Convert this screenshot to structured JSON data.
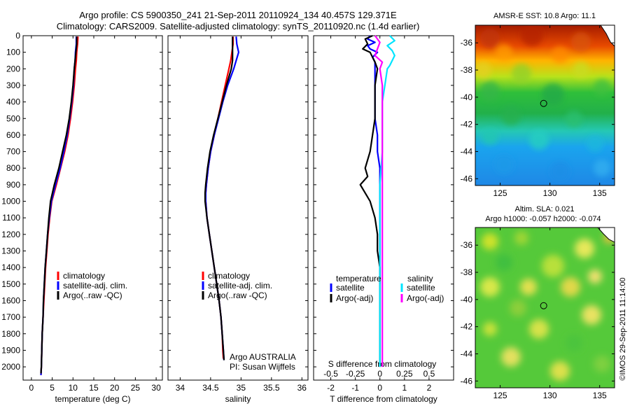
{
  "titles": {
    "line1": "Argo profile: CS 5900350_241 21-Sep-2011 20110924_134 40.457S 129.371E",
    "line2": "Climatology: CARS2009. Satellite-adjusted climatology: synTS_20110920.nc (1.4d earlier)"
  },
  "colors": {
    "climatology": "#ff0000",
    "satellite": "#0000ff",
    "argo": "#000000",
    "salinity_satellite": "#00e5ff",
    "salinity_argo": "#ff00ff"
  },
  "depth_axis": {
    "ticks": [
      "0",
      "100",
      "200",
      "300",
      "400",
      "500",
      "600",
      "700",
      "800",
      "900",
      "1000",
      "1100",
      "1200",
      "1300",
      "1400",
      "1500",
      "1600",
      "1700",
      "1800",
      "1900",
      "2000"
    ]
  },
  "chart_data": [
    {
      "type": "line",
      "name": "temperature-panel",
      "xlabel": "temperature (deg C)",
      "xlim": [
        -2,
        31.5
      ],
      "ylim": [
        0,
        2080
      ],
      "xticks": [
        "0",
        "5",
        "10",
        "15",
        "20",
        "25",
        "30"
      ],
      "xtick_values": [
        0,
        5,
        10,
        15,
        20,
        25,
        30
      ],
      "legend": [
        "climatology",
        "satellite-adj. clim.",
        "Argo(..raw -QC)"
      ],
      "series": [
        {
          "name": "climatology",
          "depth": [
            5,
            50,
            100,
            150,
            200,
            300,
            400,
            500,
            600,
            700,
            800,
            900,
            1000,
            1100,
            1200,
            1300,
            1400,
            1500,
            1600,
            1700,
            1800,
            1900,
            2000,
            2050
          ],
          "values": [
            11.2,
            11.1,
            10.9,
            10.8,
            10.6,
            10.3,
            9.9,
            9.4,
            8.8,
            8.0,
            7.0,
            6.0,
            4.9,
            4.4,
            4.0,
            3.7,
            3.4,
            3.2,
            3.0,
            2.8,
            2.6,
            2.5,
            2.4,
            2.3
          ]
        },
        {
          "name": "satellite-adj. clim.",
          "depth": [
            5,
            50,
            100,
            150,
            200,
            300,
            400,
            500,
            600,
            700,
            800,
            900,
            1000,
            1100,
            1200,
            1300,
            1400,
            1500,
            1600,
            1700,
            1800,
            1900,
            2000,
            2050
          ],
          "values": [
            10.8,
            10.8,
            10.6,
            10.5,
            10.3,
            10.1,
            9.7,
            9.2,
            8.6,
            7.8,
            6.9,
            5.8,
            4.8,
            4.3,
            3.9,
            3.6,
            3.3,
            3.1,
            2.9,
            2.8,
            2.6,
            2.5,
            2.4,
            2.3
          ]
        },
        {
          "name": "Argo(..raw -QC)",
          "depth": [
            5,
            50,
            100,
            150,
            200,
            300,
            400,
            500,
            600,
            700,
            800,
            900,
            1000,
            1100,
            1200,
            1300,
            1400,
            1500,
            1600,
            1700,
            1800,
            1900,
            2000,
            2040
          ],
          "values": [
            10.9,
            10.9,
            10.7,
            10.5,
            10.3,
            10.0,
            9.6,
            9.1,
            8.4,
            7.5,
            6.6,
            5.5,
            4.6,
            4.2,
            3.9,
            3.6,
            3.3,
            3.1,
            2.9,
            2.8,
            2.6,
            2.5,
            2.4,
            2.3
          ]
        }
      ]
    },
    {
      "type": "line",
      "name": "salinity-panel",
      "xlabel": "salinity",
      "xlim": [
        33.8,
        36.1
      ],
      "ylim": [
        0,
        2080
      ],
      "xticks": [
        "34",
        "34.5",
        "35",
        "35.5",
        "36"
      ],
      "xtick_values": [
        34,
        34.5,
        35,
        35.5,
        36
      ],
      "legend": [
        "climatology",
        "satellite-adj. clim.",
        "Argo(..raw -QC)"
      ],
      "annotation": [
        "Argo AUSTRALIA",
        "PI: Susan Wijffels"
      ],
      "series": [
        {
          "name": "climatology",
          "depth": [
            5,
            50,
            100,
            150,
            200,
            300,
            400,
            500,
            600,
            700,
            800,
            900,
            950,
            1000,
            1100,
            1200,
            1300,
            1400,
            1500,
            1600,
            1700,
            1800,
            1900,
            1950
          ],
          "values": [
            34.87,
            34.87,
            34.85,
            34.83,
            34.8,
            34.74,
            34.68,
            34.62,
            34.56,
            34.5,
            34.46,
            34.43,
            34.42,
            34.42,
            34.44,
            34.48,
            34.52,
            34.56,
            34.6,
            34.64,
            34.67,
            34.69,
            34.7,
            34.71
          ]
        },
        {
          "name": "satellite-adj. clim.",
          "depth": [
            5,
            50,
            100,
            150,
            200,
            300,
            400,
            500,
            600,
            700,
            800,
            900,
            950,
            1000,
            1100,
            1200,
            1300,
            1400,
            1500,
            1600,
            1700,
            1800,
            1900,
            1960
          ],
          "values": [
            34.92,
            34.93,
            34.96,
            34.92,
            34.88,
            34.78,
            34.7,
            34.63,
            34.56,
            34.5,
            34.46,
            34.43,
            34.42,
            34.42,
            34.44,
            34.48,
            34.52,
            34.56,
            34.6,
            34.64,
            34.67,
            34.69,
            34.71,
            34.72
          ]
        },
        {
          "name": "Argo(..raw -QC)",
          "depth": [
            5,
            50,
            100,
            150,
            200,
            300,
            400,
            500,
            600,
            700,
            800,
            900,
            950,
            1000,
            1100,
            1200,
            1300,
            1400,
            1500,
            1600,
            1700,
            1800,
            1900,
            1960
          ],
          "values": [
            34.86,
            34.86,
            34.86,
            34.86,
            34.84,
            34.76,
            34.69,
            34.62,
            34.55,
            34.49,
            34.45,
            34.42,
            34.41,
            34.41,
            34.44,
            34.48,
            34.52,
            34.56,
            34.6,
            34.64,
            34.67,
            34.69,
            34.71,
            34.72
          ]
        }
      ]
    },
    {
      "type": "line",
      "name": "difference-panel",
      "xlabel": "T difference from climatology",
      "xlabel_top": "S difference from climatology",
      "xlim": [
        -2.7,
        3.0
      ],
      "ylim": [
        0,
        2080
      ],
      "xticks": [
        "-2",
        "-1",
        "0",
        "1",
        "2"
      ],
      "xtick_values": [
        -2,
        -1,
        0,
        1,
        2
      ],
      "xticks_top": [
        "-0.5",
        "-0.25",
        "0",
        "0.25",
        "0.5"
      ],
      "xticks_top_positions": [
        -2,
        -1,
        0,
        1,
        2
      ],
      "legend_temperature": {
        "title": "temperature",
        "items": [
          "satellite",
          "Argo(-adj)"
        ]
      },
      "legend_salinity": {
        "title": "salinity",
        "items": [
          "satellite",
          "Argo(-adj)"
        ]
      },
      "series": [
        {
          "name": "temperature satellite",
          "depth": [
            0,
            20,
            40,
            60,
            80,
            100,
            130,
            160,
            200,
            300,
            400,
            500,
            600,
            700,
            800,
            900,
            1000,
            1100,
            1200,
            1300,
            1400,
            1500
          ],
          "values": [
            -0.4,
            -0.5,
            -0.2,
            -0.5,
            -0.4,
            -0.1,
            -0.3,
            -0.2,
            -0.2,
            -0.2,
            -0.2,
            -0.2,
            -0.1,
            -0.1,
            0.0,
            0.0,
            0.0,
            0.0,
            0.0,
            0.0,
            0.0,
            0.0
          ]
        },
        {
          "name": "temperature Argo(-adj)",
          "depth": [
            0,
            20,
            50,
            80,
            100,
            130,
            160,
            200,
            300,
            400,
            500,
            600,
            700,
            800,
            850,
            900,
            950,
            1000,
            1100,
            1200,
            1300,
            1400,
            1500,
            1600,
            1700,
            1800,
            1900,
            2000
          ],
          "values": [
            -0.3,
            -0.6,
            -0.5,
            -0.7,
            -0.4,
            -0.3,
            -0.2,
            -0.1,
            -0.2,
            -0.2,
            -0.2,
            -0.3,
            -0.4,
            -0.6,
            -0.5,
            -0.8,
            -0.6,
            -0.4,
            -0.2,
            -0.1,
            -0.1,
            0.0,
            0.0,
            0.0,
            0.0,
            0.0,
            0.0,
            0.0
          ]
        },
        {
          "name": "salinity satellite",
          "depth": [
            0,
            30,
            60,
            90,
            120,
            150,
            180,
            200,
            300,
            400,
            500,
            700,
            900,
            1100,
            1300,
            1500,
            1700,
            1900,
            2000
          ],
          "values": [
            0.4,
            0.6,
            0.3,
            0.5,
            0.6,
            0.5,
            0.4,
            0.3,
            0.2,
            0.1,
            0.1,
            0.1,
            0.0,
            0.0,
            0.0,
            0.0,
            0.0,
            0.0,
            0.0
          ]
        },
        {
          "name": "salinity Argo(-adj)",
          "depth": [
            0,
            40,
            80,
            120,
            160,
            200,
            300,
            400,
            500,
            700,
            900,
            1100,
            1300,
            1500,
            1700,
            1900,
            2000
          ],
          "values": [
            -0.2,
            0.0,
            -0.1,
            -0.2,
            0.1,
            0.0,
            0.1,
            0.1,
            0.1,
            0.1,
            0.1,
            0.1,
            0.1,
            0.1,
            0.1,
            0.1,
            0.1
          ]
        }
      ]
    },
    {
      "type": "heatmap",
      "name": "sst-map",
      "title": "AMSR-E SST: 10.8  Argo: 11.1",
      "xlim": [
        122.5,
        136.5
      ],
      "ylim": [
        -46.5,
        -34.7
      ],
      "xticks": [
        "125",
        "130",
        "135"
      ],
      "xtick_values": [
        125,
        130,
        135
      ],
      "yticks": [
        "-36",
        "-38",
        "-40",
        "-42",
        "-44",
        "-46"
      ],
      "ytick_values": [
        -36,
        -38,
        -40,
        -42,
        -44,
        -46
      ],
      "marker": {
        "lon": 129.371,
        "lat": -40.457
      }
    },
    {
      "type": "heatmap",
      "name": "sla-map",
      "title": "Altim. SLA: 0.021",
      "subtitle": "Argo h1000: -0.057 h2000: -0.074",
      "xlim": [
        122.5,
        136.5
      ],
      "ylim": [
        -46.5,
        -34.7
      ],
      "xticks": [
        "125",
        "130",
        "135"
      ],
      "xtick_values": [
        125,
        130,
        135
      ],
      "yticks": [
        "-36",
        "-38",
        "-40",
        "-42",
        "-44",
        "-46"
      ],
      "ytick_values": [
        -36,
        -38,
        -40,
        -42,
        -44,
        -46
      ],
      "marker": {
        "lon": 129.371,
        "lat": -40.457
      }
    }
  ],
  "credit": "©IMOS 29-Sep-2011 11:14:00"
}
